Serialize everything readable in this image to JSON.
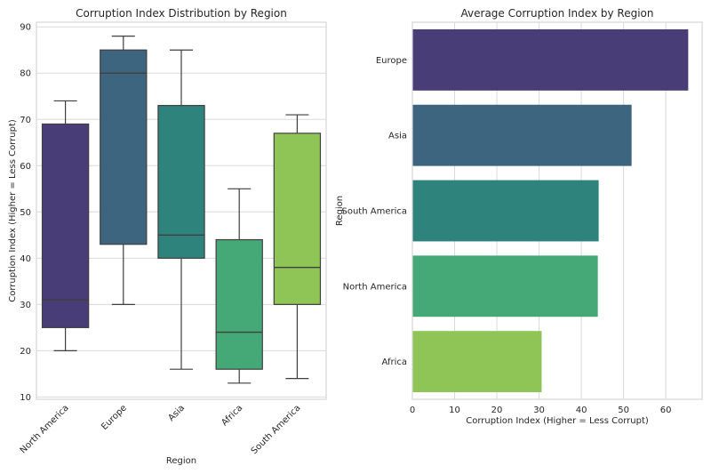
{
  "chart_data": [
    {
      "type": "box",
      "title": "Corruption Index Distribution by Region",
      "xlabel": "Region",
      "ylabel": "Corruption Index (Higher = Less Corrupt)",
      "ylim": [
        9.5,
        91
      ],
      "yticks": [
        10,
        20,
        30,
        40,
        50,
        60,
        70,
        80,
        90
      ],
      "grid": true,
      "categories": [
        "North America",
        "Europe",
        "Asia",
        "Africa",
        "South America"
      ],
      "boxes": [
        {
          "name": "North America",
          "whisker_low": 20,
          "q1": 25,
          "median": 31,
          "q3": 69,
          "whisker_high": 74,
          "color": "#483d77"
        },
        {
          "name": "Europe",
          "whisker_low": 30,
          "q1": 43,
          "median": 80,
          "q3": 85,
          "whisker_high": 88,
          "color": "#3d6580"
        },
        {
          "name": "Asia",
          "whisker_low": 16,
          "q1": 40,
          "median": 45,
          "q3": 73,
          "whisker_high": 85,
          "color": "#2e837c"
        },
        {
          "name": "Africa",
          "whisker_low": 13,
          "q1": 16,
          "median": 24,
          "q3": 44,
          "whisker_high": 55,
          "color": "#45a877"
        },
        {
          "name": "South America",
          "whisker_low": 14,
          "q1": 30,
          "median": 38,
          "q3": 67,
          "whisker_high": 71,
          "color": "#8fc556"
        }
      ]
    },
    {
      "type": "bar",
      "orientation": "horizontal",
      "title": "Average Corruption Index by Region",
      "xlabel": "Corruption Index (Higher = Less Corrupt)",
      "ylabel": "Region",
      "xlim": [
        0,
        68.6
      ],
      "xticks": [
        0,
        10,
        20,
        30,
        40,
        50,
        60
      ],
      "grid": true,
      "categories": [
        "Europe",
        "Asia",
        "South America",
        "North America",
        "Africa"
      ],
      "values": [
        65.2,
        51.8,
        44.0,
        43.8,
        30.5
      ],
      "colors": [
        "#483d77",
        "#3d6580",
        "#2e837c",
        "#45a877",
        "#8fc556"
      ]
    }
  ]
}
